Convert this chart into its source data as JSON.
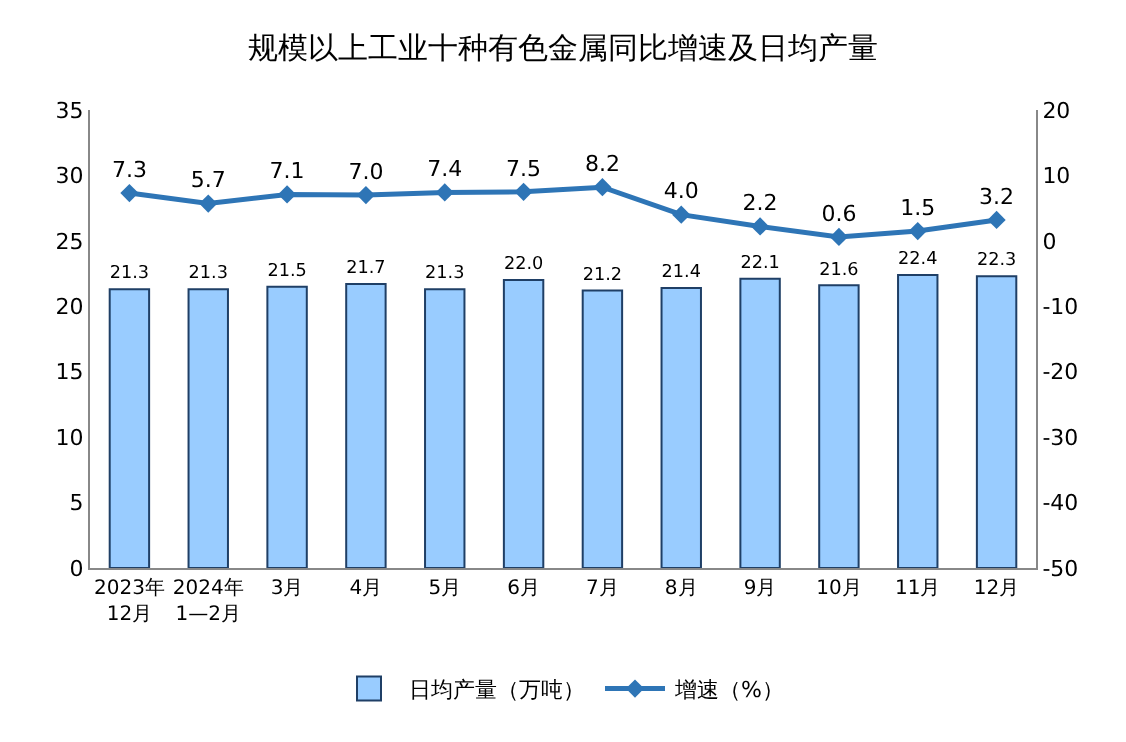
{
  "chart_data": {
    "type": "bar",
    "title": "规模以上工业十种有色金属同比增速及日均产量",
    "categories": [
      "2023年\n12月",
      "2024年\n1—2月",
      "3月",
      "4月",
      "5月",
      "6月",
      "7月",
      "8月",
      "9月",
      "10月",
      "11月",
      "12月"
    ],
    "series": [
      {
        "name": "日均产量（万吨）",
        "color": "#99ccff",
        "values": [
          21.3,
          21.3,
          21.5,
          21.7,
          21.3,
          22.0,
          21.2,
          21.4,
          22.1,
          21.6,
          22.4,
          22.3
        ],
        "value_labels": [
          "21.3",
          "21.3",
          "21.5",
          "21.7",
          "21.3",
          "22.0",
          "21.2",
          "21.4",
          "22.1",
          "21.6",
          "22.4",
          "22.3"
        ]
      },
      {
        "name": "增速（%）",
        "type": "line",
        "axis": "y2",
        "color": "#2e75b6",
        "values": [
          7.3,
          5.7,
          7.1,
          7.0,
          7.4,
          7.5,
          8.2,
          4.0,
          2.2,
          0.6,
          1.5,
          3.2
        ],
        "value_labels": [
          "7.3",
          "5.7",
          "7.1",
          "7.0",
          "7.4",
          "7.5",
          "8.2",
          "4.0",
          "2.2",
          "0.6",
          "1.5",
          "3.2"
        ]
      }
    ],
    "ylim": [
      0,
      35
    ],
    "yticks": [
      0,
      5,
      10,
      15,
      20,
      25,
      30,
      35
    ],
    "y2lim": [
      -50,
      20
    ],
    "y2ticks": [
      -50,
      -40,
      -30,
      -20,
      -10,
      0,
      10,
      20
    ],
    "legend": "bottom",
    "marker": "diamond",
    "line_style": "solid"
  }
}
